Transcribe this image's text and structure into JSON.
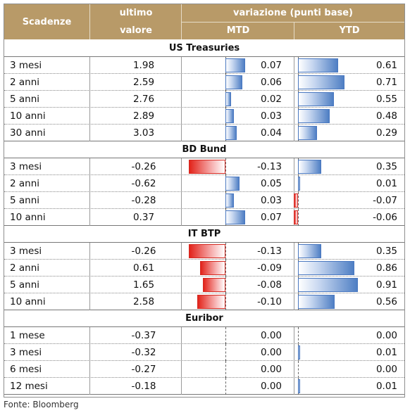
{
  "header": {
    "col_scadenze": "Scadenze",
    "col_valore_line1": "ultimo",
    "col_valore_line2": "valore",
    "col_variazione": "variazione (punti base)",
    "col_mtd": "MTD",
    "col_ytd": "YTD"
  },
  "sections": [
    {
      "title": "US Treasuries",
      "rows": [
        {
          "name": "3 mesi",
          "value": "1.98",
          "mtd": "0.07",
          "ytd": "0.61"
        },
        {
          "name": "2 anni",
          "value": "2.59",
          "mtd": "0.06",
          "ytd": "0.71"
        },
        {
          "name": "5 anni",
          "value": "2.76",
          "mtd": "0.02",
          "ytd": "0.55"
        },
        {
          "name": "10 anni",
          "value": "2.89",
          "mtd": "0.03",
          "ytd": "0.48"
        },
        {
          "name": "30 anni",
          "value": "3.03",
          "mtd": "0.04",
          "ytd": "0.29"
        }
      ]
    },
    {
      "title": "BD Bund",
      "rows": [
        {
          "name": "3 mesi",
          "value": "-0.26",
          "mtd": "-0.13",
          "ytd": "0.35"
        },
        {
          "name": "2 anni",
          "value": "-0.62",
          "mtd": "0.05",
          "ytd": "0.01"
        },
        {
          "name": "5 anni",
          "value": "-0.28",
          "mtd": "0.03",
          "ytd": "-0.07"
        },
        {
          "name": "10 anni",
          "value": "0.37",
          "mtd": "0.07",
          "ytd": "-0.06"
        }
      ]
    },
    {
      "title": "IT BTP",
      "rows": [
        {
          "name": "3 mesi",
          "value": "-0.26",
          "mtd": "-0.13",
          "ytd": "0.35"
        },
        {
          "name": "2 anni",
          "value": "0.61",
          "mtd": "-0.09",
          "ytd": "0.86"
        },
        {
          "name": "5 anni",
          "value": "1.65",
          "mtd": "-0.08",
          "ytd": "0.91"
        },
        {
          "name": "10 anni",
          "value": "2.58",
          "mtd": "-0.10",
          "ytd": "0.56"
        }
      ]
    },
    {
      "title": "Euribor",
      "rows": [
        {
          "name": "1 mese",
          "value": "-0.37",
          "mtd": "0.00",
          "ytd": "0.00"
        },
        {
          "name": "3 mesi",
          "value": "-0.32",
          "mtd": "0.00",
          "ytd": "0.01"
        },
        {
          "name": "6 mesi",
          "value": "-0.27",
          "mtd": "0.00",
          "ytd": "0.00"
        },
        {
          "name": "12 mesi",
          "value": "-0.18",
          "mtd": "0.00",
          "ytd": "0.01"
        }
      ]
    }
  ],
  "source": "Fonte: Bloomberg",
  "colors": {
    "header_bg": "#b89a68",
    "positive_bar": "#4f7fc4",
    "negative_bar": "#e2231a"
  }
}
